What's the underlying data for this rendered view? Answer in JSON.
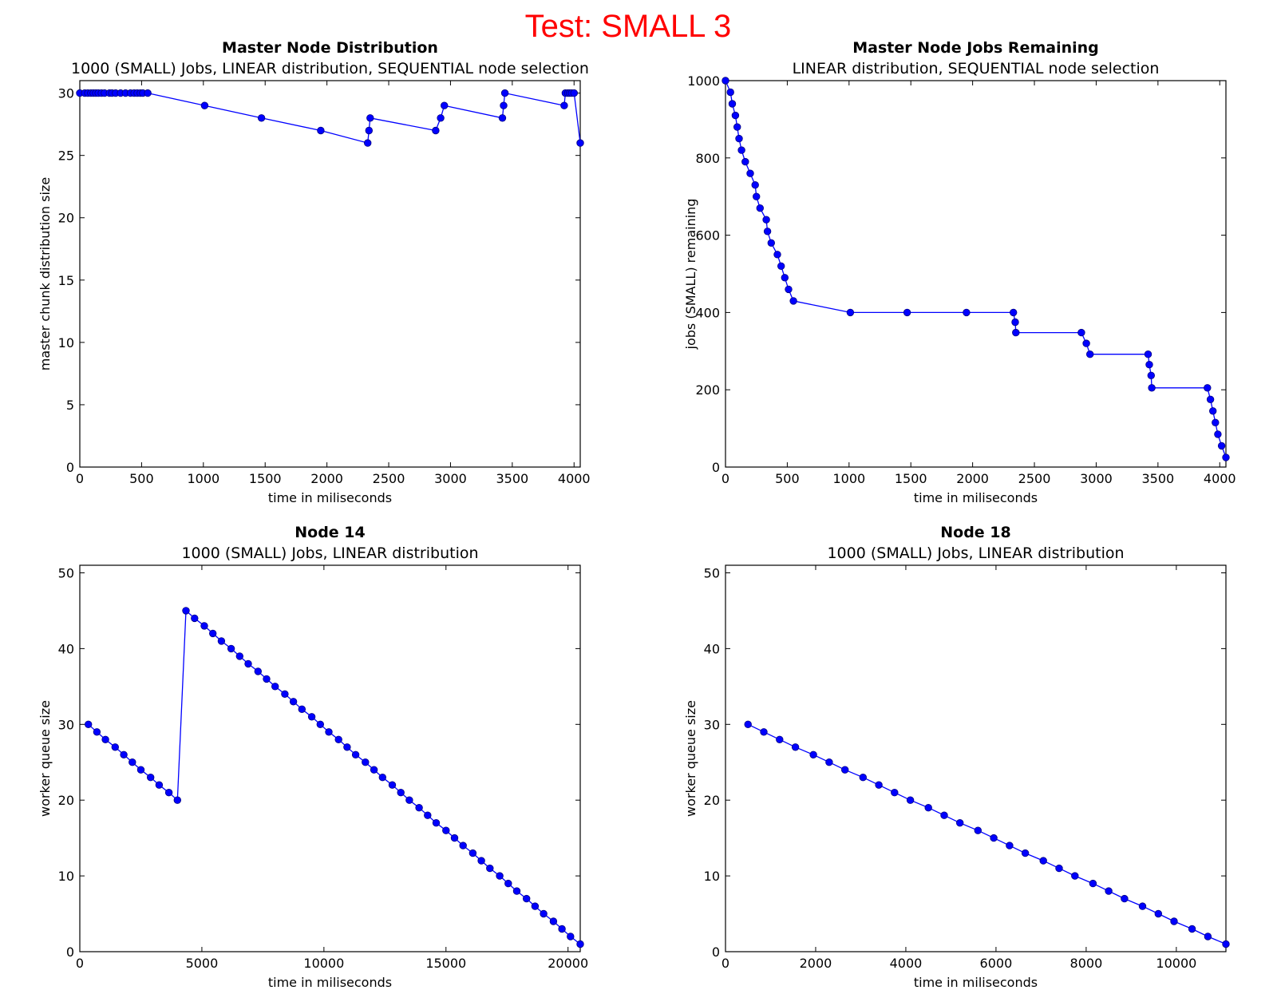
{
  "figure": {
    "suptitle": "Test: SMALL 3",
    "suptitle_color": "#ff0000"
  },
  "series_color": "#0000ff",
  "chart_data": [
    {
      "type": "line",
      "title": "Master Node Distribution",
      "subtitle": "1000 (SMALL) Jobs, LINEAR distribution, SEQUENTIAL node selection",
      "xlabel": "time in miliseconds",
      "ylabel": "master chunk distribution size",
      "xlim": [
        0,
        4050
      ],
      "ylim": [
        0,
        31
      ],
      "xticks": [
        0,
        500,
        1000,
        1500,
        2000,
        2500,
        3000,
        3500,
        4000
      ],
      "yticks": [
        0,
        5,
        10,
        15,
        20,
        25,
        30
      ],
      "grid": false,
      "x": [
        0,
        40,
        65,
        90,
        110,
        130,
        150,
        175,
        200,
        240,
        260,
        290,
        330,
        370,
        410,
        440,
        465,
        490,
        510,
        550,
        1010,
        1470,
        1950,
        2330,
        2340,
        2350,
        2880,
        2920,
        2950,
        3420,
        3430,
        3440,
        3920,
        3930,
        3950,
        3965,
        3980,
        4000,
        4050
      ],
      "y": [
        30,
        30,
        30,
        30,
        30,
        30,
        30,
        30,
        30,
        30,
        30,
        30,
        30,
        30,
        30,
        30,
        30,
        30,
        30,
        30,
        29,
        28,
        27,
        26,
        27,
        28,
        27,
        28,
        29,
        28,
        29,
        30,
        29,
        30,
        30,
        30,
        30,
        30,
        26
      ]
    },
    {
      "type": "line",
      "title": "Master Node Jobs Remaining",
      "subtitle": "LINEAR distribution, SEQUENTIAL node selection",
      "xlabel": "time in miliseconds",
      "ylabel": "jobs (SMALL) remaining",
      "xlim": [
        0,
        4050
      ],
      "ylim": [
        0,
        1000
      ],
      "xticks": [
        0,
        500,
        1000,
        1500,
        2000,
        2500,
        3000,
        3500,
        4000
      ],
      "yticks": [
        0,
        200,
        400,
        600,
        800,
        1000
      ],
      "grid": false,
      "x": [
        0,
        40,
        55,
        80,
        95,
        110,
        130,
        160,
        200,
        240,
        250,
        280,
        330,
        340,
        370,
        420,
        450,
        480,
        510,
        550,
        1010,
        1470,
        1950,
        2330,
        2345,
        2350,
        2880,
        2920,
        2950,
        3420,
        3430,
        3445,
        3450,
        3900,
        3925,
        3945,
        3965,
        3985,
        4015,
        4050
      ],
      "y": [
        1000,
        970,
        940,
        910,
        880,
        850,
        820,
        790,
        760,
        730,
        700,
        670,
        640,
        610,
        580,
        550,
        520,
        490,
        460,
        430,
        400,
        400,
        400,
        400,
        375,
        348,
        348,
        320,
        292,
        292,
        265,
        237,
        205,
        205,
        175,
        145,
        115,
        85,
        55,
        25
      ]
    },
    {
      "type": "line",
      "title": "Node 14",
      "subtitle": "1000 (SMALL) Jobs, LINEAR distribution",
      "xlabel": "time in miliseconds",
      "ylabel": "worker queue size",
      "xlim": [
        0,
        20500
      ],
      "ylim": [
        0,
        51
      ],
      "xticks": [
        0,
        5000,
        10000,
        15000,
        20000
      ],
      "yticks": [
        0,
        10,
        20,
        30,
        40,
        50
      ],
      "grid": false,
      "x": [
        350,
        700,
        1050,
        1450,
        1800,
        2150,
        2500,
        2900,
        3250,
        3650,
        4000,
        4350,
        4700,
        5100,
        5450,
        5800,
        6200,
        6550,
        6900,
        7300,
        7650,
        8000,
        8400,
        8750,
        9100,
        9500,
        9850,
        10200,
        10600,
        10950,
        11300,
        11700,
        12050,
        12400,
        12800,
        13150,
        13500,
        13900,
        14250,
        14600,
        15000,
        15350,
        15700,
        16100,
        16450,
        16800,
        17200,
        17550,
        17900,
        18300,
        18650,
        19000,
        19400,
        19750,
        20100,
        20500
      ],
      "y": [
        30,
        29,
        28,
        27,
        26,
        25,
        24,
        23,
        22,
        21,
        20,
        45,
        44,
        43,
        42,
        41,
        40,
        39,
        38,
        37,
        36,
        35,
        34,
        33,
        32,
        31,
        30,
        29,
        28,
        27,
        26,
        25,
        24,
        23,
        22,
        21,
        20,
        19,
        18,
        17,
        16,
        15,
        14,
        13,
        12,
        11,
        10,
        9,
        8,
        7,
        6,
        5,
        4,
        3,
        2,
        1
      ]
    },
    {
      "type": "line",
      "title": "Node 18",
      "subtitle": "1000 (SMALL) Jobs, LINEAR distribution",
      "xlabel": "time in miliseconds",
      "ylabel": "worker queue size",
      "xlim": [
        0,
        11100
      ],
      "ylim": [
        0,
        51
      ],
      "xticks": [
        0,
        2000,
        4000,
        6000,
        8000,
        10000
      ],
      "yticks": [
        0,
        10,
        20,
        30,
        40,
        50
      ],
      "grid": false,
      "x": [
        500,
        850,
        1200,
        1550,
        1950,
        2300,
        2650,
        3050,
        3400,
        3750,
        4100,
        4500,
        4850,
        5200,
        5600,
        5950,
        6300,
        6650,
        7050,
        7400,
        7750,
        8150,
        8500,
        8850,
        9250,
        9600,
        9950,
        10350,
        10700,
        11100
      ],
      "y": [
        30,
        29,
        28,
        27,
        26,
        25,
        24,
        23,
        22,
        21,
        20,
        19,
        18,
        17,
        16,
        15,
        14,
        13,
        12,
        11,
        10,
        9,
        8,
        7,
        6,
        5,
        4,
        3,
        2,
        1
      ]
    }
  ]
}
